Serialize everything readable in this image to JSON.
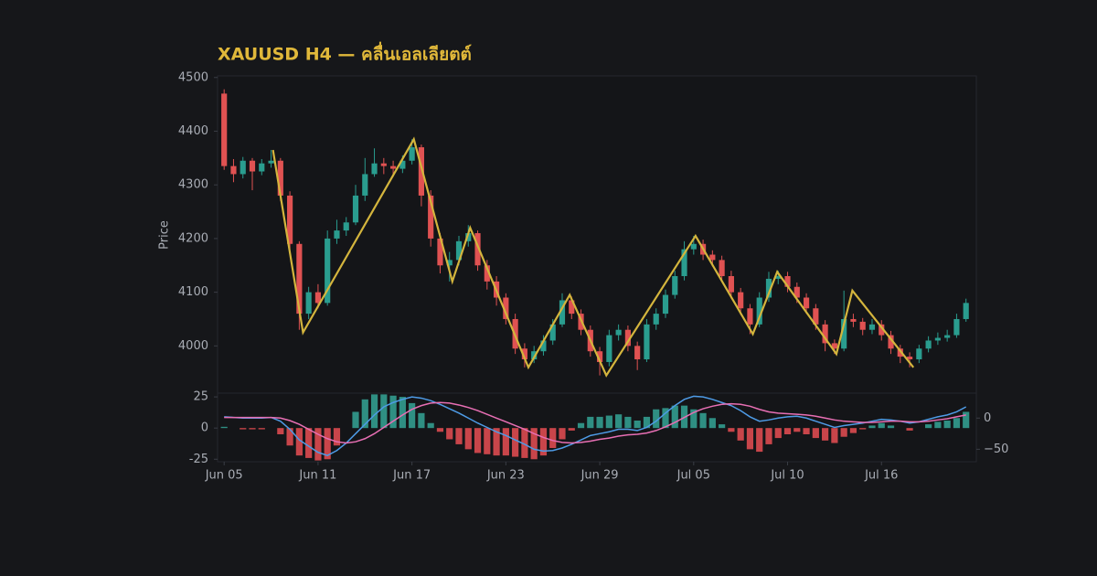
{
  "chart_data": [
    {
      "type": "candlestick",
      "title": "XAUUSD H4 — คลื่นเอลเลียตต์",
      "y_label": "Price",
      "up_color": "#2a9d8f",
      "down_color": "#e05252",
      "xlim": [
        -0.7,
        80.1
      ],
      "ylim": [
        3912,
        4503
      ],
      "yticks": [
        4000,
        4100,
        4200,
        4300,
        4400,
        4500
      ],
      "open": [
        4470,
        4335,
        4320,
        4345,
        4325,
        4340,
        4345,
        4280,
        4190,
        4060,
        4100,
        4080,
        4200,
        4215,
        4230,
        4280,
        4320,
        4340,
        4335,
        4330,
        4345,
        4370,
        4280,
        4200,
        4150,
        4160,
        4195,
        4210,
        4150,
        4120,
        4090,
        4050,
        3995,
        3975,
        3990,
        4010,
        4040,
        4085,
        4060,
        4030,
        3990,
        3970,
        4020,
        4030,
        4000,
        3975,
        4040,
        4060,
        4095,
        4130,
        4180,
        4190,
        4170,
        4160,
        4130,
        4100,
        4070,
        4040,
        4090,
        4125,
        4130,
        4110,
        4090,
        4070,
        4040,
        4005,
        3995,
        4050,
        4045,
        4030,
        4040,
        4020,
        3995,
        3980,
        3975,
        3995,
        4010,
        4015,
        4020,
        4050
      ],
      "high": [
        4478,
        4348,
        4352,
        4350,
        4348,
        4365,
        4350,
        4288,
        4195,
        4110,
        4115,
        4215,
        4235,
        4240,
        4300,
        4350,
        4368,
        4350,
        4345,
        4355,
        4385,
        4375,
        4290,
        4210,
        4175,
        4205,
        4225,
        4215,
        4160,
        4130,
        4098,
        4060,
        4005,
        4000,
        4020,
        4050,
        4098,
        4092,
        4068,
        4038,
        3998,
        4030,
        4040,
        4038,
        4008,
        4050,
        4070,
        4105,
        4140,
        4195,
        4205,
        4198,
        4178,
        4168,
        4140,
        4108,
        4078,
        4100,
        4138,
        4140,
        4138,
        4118,
        4098,
        4078,
        4048,
        4012,
        4103,
        4060,
        4052,
        4050,
        4048,
        4028,
        4002,
        3988,
        4002,
        4018,
        4025,
        4030,
        4060,
        4088
      ],
      "low": [
        4328,
        4305,
        4312,
        4290,
        4318,
        4332,
        4270,
        4180,
        4030,
        4050,
        4070,
        4075,
        4190,
        4205,
        4225,
        4270,
        4315,
        4320,
        4315,
        4322,
        4338,
        4260,
        4185,
        4135,
        4120,
        4150,
        4185,
        4140,
        4105,
        4075,
        4040,
        3985,
        3960,
        3968,
        3982,
        4002,
        4035,
        4050,
        4020,
        3980,
        3945,
        3962,
        4010,
        3990,
        3955,
        3970,
        4030,
        4052,
        4088,
        4122,
        4170,
        4160,
        4148,
        4120,
        4088,
        4058,
        4022,
        4035,
        4082,
        4115,
        4100,
        4080,
        4060,
        4030,
        3990,
        3985,
        3990,
        4035,
        4020,
        4022,
        4010,
        3985,
        3968,
        3960,
        3968,
        3988,
        4002,
        4008,
        4015,
        4045
      ],
      "close": [
        4335,
        4320,
        4345,
        4325,
        4340,
        4345,
        4280,
        4190,
        4060,
        4100,
        4080,
        4200,
        4215,
        4230,
        4280,
        4320,
        4340,
        4335,
        4330,
        4345,
        4370,
        4280,
        4200,
        4150,
        4160,
        4195,
        4210,
        4150,
        4120,
        4090,
        4050,
        3995,
        3975,
        3990,
        4010,
        4040,
        4085,
        4060,
        4030,
        3990,
        3970,
        4020,
        4030,
        4000,
        3975,
        4040,
        4060,
        4095,
        4130,
        4180,
        4190,
        4170,
        4160,
        4130,
        4100,
        4070,
        4040,
        4090,
        4125,
        4130,
        4110,
        4090,
        4070,
        4040,
        4005,
        3995,
        4050,
        4045,
        4030,
        4040,
        4020,
        3995,
        3980,
        3975,
        3995,
        4010,
        4015,
        4020,
        4050,
        4080
      ],
      "zigzag": {
        "color": "#d4b53d",
        "x": [
          5.2,
          8.4,
          20.2,
          24.3,
          26.2,
          32.4,
          36.8,
          40.7,
          50.2,
          56.3,
          58.9,
          65.2,
          66.9,
          73.4
        ],
        "values": [
          4365,
          4025,
          4385,
          4120,
          4220,
          3960,
          4095,
          3945,
          4205,
          4022,
          4138,
          3985,
          4103,
          3960
        ]
      }
    },
    {
      "type": "macd",
      "up_color": "#2f8f83",
      "down_color": "#c8454a",
      "xlim": [
        -0.7,
        80.1
      ],
      "xticks": [
        {
          "value": 0,
          "label": "Jun 05"
        },
        {
          "value": 10,
          "label": "Jun 11"
        },
        {
          "value": 20,
          "label": "Jun 17"
        },
        {
          "value": 30,
          "label": "Jun 23"
        },
        {
          "value": 40,
          "label": "Jun 29"
        },
        {
          "value": 50,
          "label": "Jul 05"
        },
        {
          "value": 60,
          "label": "Jul 10"
        },
        {
          "value": 70,
          "label": "Jul 16"
        }
      ],
      "ylim": [
        -27,
        28
      ],
      "yticks": [
        25,
        0,
        -25
      ],
      "y2lim": [
        -70,
        40
      ],
      "y2ticks": [
        0,
        {
          "value": -50,
          "label": "−50"
        }
      ],
      "histogram": [
        1,
        0,
        -1,
        -1,
        -1,
        0,
        -5,
        -14,
        -22,
        -24,
        -26,
        -25,
        -14,
        0,
        13,
        23,
        27,
        27,
        26,
        25,
        20,
        12,
        4,
        -3,
        -9,
        -13,
        -17,
        -20,
        -21,
        -22,
        -22,
        -23,
        -24,
        -25,
        -22,
        -16,
        -9,
        -2,
        4,
        9,
        9,
        10,
        11,
        9,
        6,
        9,
        15,
        16,
        18,
        18,
        15,
        12,
        8,
        3,
        -3,
        -10,
        -17,
        -19,
        -13,
        -8,
        -5,
        -3,
        -5,
        -8,
        -10,
        -12,
        -7,
        -4,
        -1,
        2,
        4,
        2,
        0,
        -2,
        0,
        3,
        5,
        6,
        8,
        13
      ],
      "macd": {
        "color": "#4e9be6",
        "axis": "y2",
        "values": [
          2,
          1,
          0,
          0,
          0,
          1,
          -5,
          -18,
          -35,
          -45,
          -55,
          -60,
          -52,
          -40,
          -25,
          -10,
          5,
          18,
          25,
          30,
          34,
          32,
          28,
          22,
          15,
          8,
          0,
          -8,
          -15,
          -22,
          -28,
          -35,
          -42,
          -50,
          -53,
          -52,
          -48,
          -42,
          -35,
          -28,
          -25,
          -22,
          -18,
          -18,
          -20,
          -15,
          -5,
          8,
          20,
          30,
          35,
          34,
          30,
          25,
          20,
          12,
          2,
          -5,
          -3,
          0,
          2,
          3,
          0,
          -5,
          -10,
          -15,
          -12,
          -10,
          -8,
          -5,
          -2,
          -3,
          -5,
          -8,
          -6,
          -2,
          2,
          5,
          10,
          18
        ]
      },
      "signal": {
        "color": "#e86fb4",
        "axis": "y2",
        "values": [
          1,
          1,
          1,
          1,
          1,
          1,
          0,
          -4,
          -10,
          -18,
          -26,
          -33,
          -38,
          -40,
          -38,
          -33,
          -25,
          -15,
          -5,
          5,
          14,
          20,
          24,
          25,
          24,
          21,
          17,
          12,
          6,
          0,
          -6,
          -12,
          -18,
          -25,
          -31,
          -36,
          -39,
          -40,
          -39,
          -37,
          -34,
          -32,
          -29,
          -27,
          -26,
          -24,
          -20,
          -14,
          -7,
          1,
          9,
          15,
          19,
          22,
          23,
          22,
          19,
          14,
          10,
          8,
          7,
          6,
          5,
          3,
          0,
          -3,
          -5,
          -6,
          -7,
          -7,
          -6,
          -5,
          -5,
          -6,
          -6,
          -5,
          -3,
          -1,
          2,
          5
        ]
      }
    }
  ]
}
